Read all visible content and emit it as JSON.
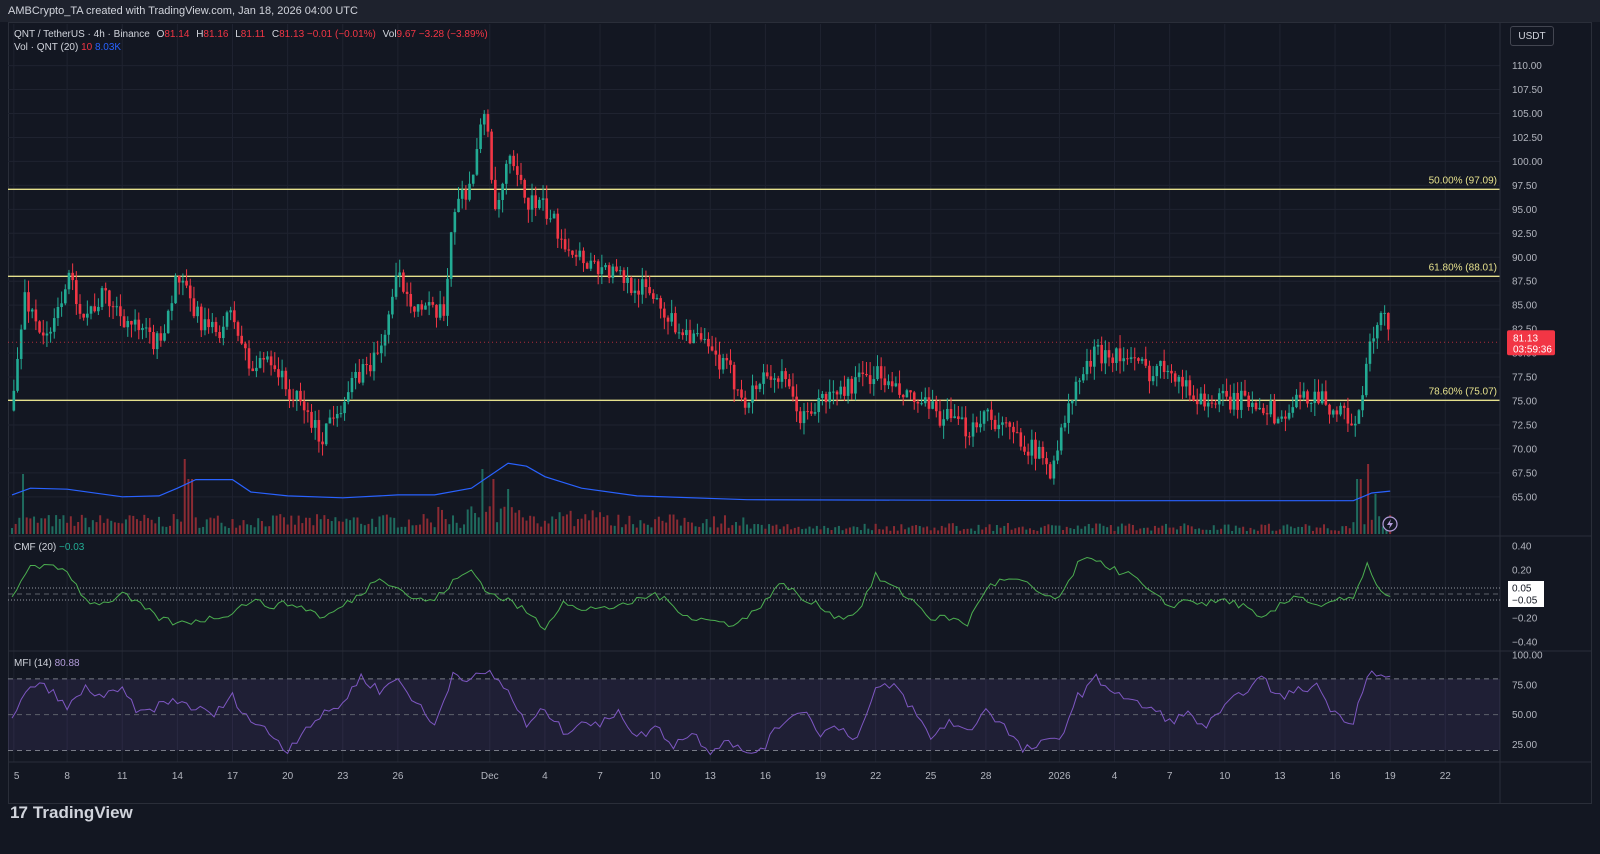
{
  "header": {
    "credit": "AMBCrypto_TA created with TradingView.com, Jan 18, 2026 04:00 UTC"
  },
  "legend": {
    "symbol": "QNT / TetherUS · 4h · Binance",
    "o_label": "O",
    "o_value": "81.14",
    "h_label": "H",
    "h_value": "81.16",
    "l_label": "L",
    "l_value": "81.11",
    "c_label": "C",
    "c_value": "81.13",
    "change": "−0.01 (−0.01%)",
    "vol_label": "Vol",
    "vol_value": "9.67",
    "vol_change": "−3.28 (−3.89%)",
    "vol_indicator": "Vol · QNT (20)",
    "vol_ma_len": "10",
    "vol_ma_value": "8.03K",
    "cmf_label": "CMF (20)",
    "cmf_value": "−0.03",
    "mfi_label": "MFI (14)",
    "mfi_value": "80.88"
  },
  "currency_button": "USDT",
  "brand": {
    "logo_glyph": "17",
    "name": "TradingView"
  },
  "colors": {
    "up": "#22ab94",
    "down": "#f23645",
    "fib": "#e5e08c",
    "vol_ma": "#2962ff",
    "cmf": "#4caf50",
    "mfi": "#7e57c2",
    "bg": "#131722"
  },
  "chart_data": [
    {
      "type": "candlestick",
      "title": "QNT / TetherUS · 4h · Binance",
      "ylim": [
        63,
        111
      ],
      "x_range": [
        0,
        80
      ],
      "y_ticks": [
        "110.00",
        "107.50",
        "105.00",
        "102.50",
        "100.00",
        "97.50",
        "95.00",
        "92.50",
        "90.00",
        "87.50",
        "85.00",
        "82.50",
        "80.00",
        "77.50",
        "75.00",
        "72.50",
        "70.00",
        "67.50",
        "65.00"
      ],
      "x_ticks": [
        {
          "label": "5",
          "x": 0.1
        },
        {
          "label": "8",
          "x": 3
        },
        {
          "label": "11",
          "x": 6
        },
        {
          "label": "14",
          "x": 9
        },
        {
          "label": "17",
          "x": 12
        },
        {
          "label": "20",
          "x": 15
        },
        {
          "label": "23",
          "x": 18
        },
        {
          "label": "26",
          "x": 21
        },
        {
          "label": "Dec",
          "x": 26
        },
        {
          "label": "4",
          "x": 29
        },
        {
          "label": "7",
          "x": 32
        },
        {
          "label": "10",
          "x": 35
        },
        {
          "label": "13",
          "x": 38
        },
        {
          "label": "16",
          "x": 41
        },
        {
          "label": "19",
          "x": 44
        },
        {
          "label": "22",
          "x": 47
        },
        {
          "label": "25",
          "x": 50
        },
        {
          "label": "28",
          "x": 53
        },
        {
          "label": "2026",
          "x": 57
        },
        {
          "label": "4",
          "x": 60
        },
        {
          "label": "7",
          "x": 63
        },
        {
          "label": "10",
          "x": 66
        },
        {
          "label": "13",
          "x": 69
        },
        {
          "label": "16",
          "x": 72
        },
        {
          "label": "19",
          "x": 75
        },
        {
          "label": "22",
          "x": 78
        }
      ],
      "fib_levels": [
        {
          "label": "50.00% (97.09)",
          "value": 97.09
        },
        {
          "label": "61.80% (88.01)",
          "value": 88.01
        },
        {
          "label": "78.60% (75.07)",
          "value": 75.07
        }
      ],
      "last_price": {
        "value": 81.13,
        "label": "81.13",
        "countdown": "03:59:36"
      },
      "price_path": [
        [
          0,
          74
        ],
        [
          0.7,
          86
        ],
        [
          1.4,
          83
        ],
        [
          2,
          81
        ],
        [
          3,
          88
        ],
        [
          4,
          84
        ],
        [
          5,
          86
        ],
        [
          6,
          84
        ],
        [
          7,
          82
        ],
        [
          8,
          81
        ],
        [
          9,
          88
        ],
        [
          10,
          84
        ],
        [
          11,
          82
        ],
        [
          12,
          84
        ],
        [
          13,
          78
        ],
        [
          14,
          80
        ],
        [
          15,
          76
        ],
        [
          16,
          74
        ],
        [
          16.8,
          71
        ],
        [
          17.5,
          74
        ],
        [
          18,
          75
        ],
        [
          19,
          78
        ],
        [
          20,
          80
        ],
        [
          21,
          88
        ],
        [
          22,
          85
        ],
        [
          23,
          84
        ],
        [
          23.5,
          84
        ],
        [
          24,
          95
        ],
        [
          25,
          98
        ],
        [
          25.8,
          106
        ],
        [
          26.3,
          94
        ],
        [
          27,
          100
        ],
        [
          28,
          96
        ],
        [
          29,
          95
        ],
        [
          30,
          92
        ],
        [
          31,
          90
        ],
        [
          32,
          89
        ],
        [
          33,
          88
        ],
        [
          34,
          87
        ],
        [
          35,
          86
        ],
        [
          36,
          83
        ],
        [
          37,
          82
        ],
        [
          38,
          80
        ],
        [
          39,
          78
        ],
        [
          40,
          75
        ],
        [
          41,
          78
        ],
        [
          42,
          77
        ],
        [
          43,
          73
        ],
        [
          44,
          75
        ],
        [
          45,
          76
        ],
        [
          46,
          77
        ],
        [
          47,
          78
        ],
        [
          48,
          76
        ],
        [
          49,
          75
        ],
        [
          50,
          74
        ],
        [
          51,
          73
        ],
        [
          52,
          72
        ],
        [
          53,
          74
        ],
        [
          54,
          72
        ],
        [
          55,
          71
        ],
        [
          56,
          69
        ],
        [
          56.5,
          68
        ],
        [
          57,
          71
        ],
        [
          58,
          77
        ],
        [
          59,
          80
        ],
        [
          60,
          80
        ],
        [
          61,
          79
        ],
        [
          62,
          78
        ],
        [
          63,
          79
        ],
        [
          64,
          76
        ],
        [
          65,
          75
        ],
        [
          66,
          75
        ],
        [
          67,
          75
        ],
        [
          68,
          75
        ],
        [
          69,
          73
        ],
        [
          70,
          75
        ],
        [
          71,
          76
        ],
        [
          72,
          74
        ],
        [
          73,
          73
        ],
        [
          73.3,
          73
        ],
        [
          73.8,
          80
        ],
        [
          74.6,
          84
        ],
        [
          75.1,
          81.13
        ]
      ]
    },
    {
      "type": "bar",
      "title": "Vol · QNT (20)",
      "series": [
        {
          "name": "Vol",
          "note": "volume bars, spikes near 14, Nov 30 and Jan 17"
        }
      ],
      "ma_path": [
        [
          0,
          65.2
        ],
        [
          1,
          65.9
        ],
        [
          3,
          65.8
        ],
        [
          6,
          65.0
        ],
        [
          8,
          65.1
        ],
        [
          9,
          65.9
        ],
        [
          10,
          66.8
        ],
        [
          12,
          66.8
        ],
        [
          13,
          65.5
        ],
        [
          15,
          65.1
        ],
        [
          18,
          64.9
        ],
        [
          21,
          65.2
        ],
        [
          23,
          65.2
        ],
        [
          25,
          65.9
        ],
        [
          27,
          68.5
        ],
        [
          28,
          68.2
        ],
        [
          29,
          67.1
        ],
        [
          31,
          65.9
        ],
        [
          34,
          65.1
        ],
        [
          40,
          64.7
        ],
        [
          60,
          64.6
        ],
        [
          70,
          64.6
        ],
        [
          73,
          64.6
        ],
        [
          74,
          65.4
        ],
        [
          75,
          65.6
        ]
      ]
    },
    {
      "type": "line",
      "title": "CMF (20)",
      "series": [
        {
          "name": "CMF (20)",
          "last": "−0.03"
        }
      ],
      "ylim": [
        -0.45,
        0.45
      ],
      "y_ticks": [
        "0.40",
        "0.20",
        "−0.20",
        "−0.40"
      ],
      "bands": [
        {
          "label": "0.05",
          "value": 0.05
        },
        {
          "label": "−0.05",
          "value": -0.05
        }
      ],
      "path": [
        [
          0,
          -0.05
        ],
        [
          1,
          0.25
        ],
        [
          2,
          0.22
        ],
        [
          3,
          0.2
        ],
        [
          4,
          -0.05
        ],
        [
          5,
          -0.08
        ],
        [
          6,
          0.0
        ],
        [
          7,
          -0.1
        ],
        [
          8,
          -0.2
        ],
        [
          9,
          -0.25
        ],
        [
          10,
          -0.22
        ],
        [
          11,
          -0.2
        ],
        [
          12,
          -0.15
        ],
        [
          13,
          -0.05
        ],
        [
          14,
          -0.1
        ],
        [
          15,
          -0.08
        ],
        [
          16,
          -0.12
        ],
        [
          17,
          -0.2
        ],
        [
          18,
          -0.1
        ],
        [
          19,
          0.0
        ],
        [
          20,
          0.15
        ],
        [
          21,
          0.05
        ],
        [
          22,
          -0.05
        ],
        [
          23,
          -0.05
        ],
        [
          24,
          0.1
        ],
        [
          25,
          0.2
        ],
        [
          26,
          0.0
        ],
        [
          27,
          -0.05
        ],
        [
          28,
          -0.15
        ],
        [
          29,
          -0.28
        ],
        [
          30,
          -0.05
        ],
        [
          31,
          -0.15
        ],
        [
          32,
          -0.1
        ],
        [
          33,
          -0.12
        ],
        [
          34,
          -0.05
        ],
        [
          35,
          0.0
        ],
        [
          36,
          -0.1
        ],
        [
          37,
          -0.2
        ],
        [
          38,
          -0.22
        ],
        [
          39,
          -0.25
        ],
        [
          40,
          -0.2
        ],
        [
          41,
          -0.05
        ],
        [
          42,
          0.1
        ],
        [
          43,
          -0.05
        ],
        [
          44,
          -0.1
        ],
        [
          45,
          -0.2
        ],
        [
          46,
          -0.15
        ],
        [
          47,
          0.15
        ],
        [
          48,
          0.05
        ],
        [
          49,
          -0.05
        ],
        [
          50,
          -0.2
        ],
        [
          51,
          -0.2
        ],
        [
          52,
          -0.25
        ],
        [
          53,
          0.05
        ],
        [
          54,
          0.12
        ],
        [
          55,
          0.1
        ],
        [
          56,
          0.0
        ],
        [
          57,
          -0.05
        ],
        [
          58,
          0.25
        ],
        [
          59,
          0.3
        ],
        [
          60,
          0.2
        ],
        [
          61,
          0.15
        ],
        [
          62,
          0.0
        ],
        [
          63,
          -0.1
        ],
        [
          64,
          -0.05
        ],
        [
          65,
          -0.08
        ],
        [
          66,
          -0.05
        ],
        [
          67,
          -0.1
        ],
        [
          68,
          -0.22
        ],
        [
          69,
          -0.1
        ],
        [
          70,
          0.0
        ],
        [
          71,
          -0.1
        ],
        [
          72,
          -0.05
        ],
        [
          73,
          -0.05
        ],
        [
          73.8,
          0.25
        ],
        [
          74.6,
          -0.02
        ],
        [
          75.1,
          -0.03
        ]
      ]
    },
    {
      "type": "line",
      "title": "MFI (14)",
      "series": [
        {
          "name": "MFI (14)",
          "last": "80.88"
        }
      ],
      "ylim": [
        12,
        100
      ],
      "y_ticks": [
        "100.00",
        "75.00",
        "50.00",
        "25.00"
      ],
      "bands": [
        {
          "label": "80",
          "value": 80
        },
        {
          "label": "20",
          "value": 20
        }
      ],
      "path": [
        [
          0,
          45
        ],
        [
          1,
          75
        ],
        [
          2,
          72
        ],
        [
          3,
          55
        ],
        [
          4,
          72
        ],
        [
          5,
          65
        ],
        [
          6,
          70
        ],
        [
          7,
          50
        ],
        [
          8,
          58
        ],
        [
          9,
          62
        ],
        [
          10,
          55
        ],
        [
          11,
          50
        ],
        [
          12,
          65
        ],
        [
          13,
          45
        ],
        [
          14,
          35
        ],
        [
          15,
          20
        ],
        [
          16,
          40
        ],
        [
          17,
          50
        ],
        [
          18,
          60
        ],
        [
          19,
          82
        ],
        [
          20,
          70
        ],
        [
          21,
          80
        ],
        [
          22,
          60
        ],
        [
          23,
          40
        ],
        [
          24,
          85
        ],
        [
          25,
          80
        ],
        [
          26,
          85
        ],
        [
          27,
          70
        ],
        [
          28,
          40
        ],
        [
          29,
          55
        ],
        [
          30,
          35
        ],
        [
          31,
          45
        ],
        [
          32,
          40
        ],
        [
          33,
          55
        ],
        [
          34,
          30
        ],
        [
          35,
          40
        ],
        [
          36,
          25
        ],
        [
          37,
          35
        ],
        [
          38,
          20
        ],
        [
          39,
          30
        ],
        [
          40,
          15
        ],
        [
          41,
          25
        ],
        [
          42,
          45
        ],
        [
          43,
          55
        ],
        [
          44,
          35
        ],
        [
          45,
          40
        ],
        [
          46,
          30
        ],
        [
          47,
          70
        ],
        [
          48,
          75
        ],
        [
          49,
          55
        ],
        [
          50,
          30
        ],
        [
          51,
          45
        ],
        [
          52,
          35
        ],
        [
          53,
          55
        ],
        [
          54,
          40
        ],
        [
          55,
          20
        ],
        [
          56,
          25
        ],
        [
          57,
          30
        ],
        [
          58,
          65
        ],
        [
          59,
          80
        ],
        [
          60,
          70
        ],
        [
          61,
          60
        ],
        [
          62,
          55
        ],
        [
          63,
          45
        ],
        [
          64,
          50
        ],
        [
          65,
          40
        ],
        [
          66,
          55
        ],
        [
          67,
          70
        ],
        [
          68,
          80
        ],
        [
          69,
          65
        ],
        [
          70,
          70
        ],
        [
          71,
          75
        ],
        [
          72,
          50
        ],
        [
          73,
          45
        ],
        [
          73.8,
          88
        ],
        [
          74.6,
          80
        ],
        [
          75.1,
          80.88
        ]
      ]
    }
  ]
}
